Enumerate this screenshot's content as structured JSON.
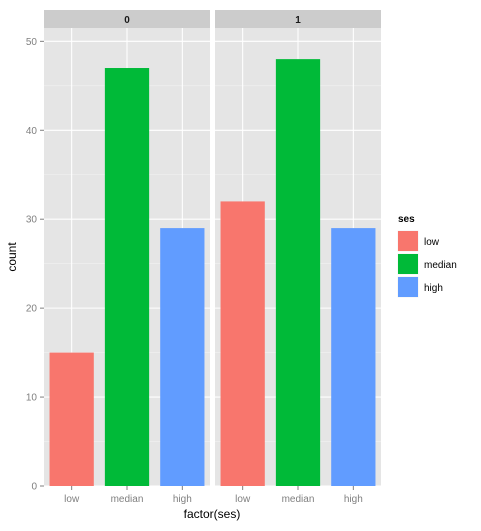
{
  "chart_data": {
    "type": "bar",
    "facets": [
      {
        "label": "0",
        "categories": [
          "low",
          "median",
          "high"
        ],
        "values": [
          15,
          47,
          29
        ]
      },
      {
        "label": "1",
        "categories": [
          "low",
          "median",
          "high"
        ],
        "values": [
          32,
          48,
          29
        ]
      }
    ],
    "categories": [
      "low",
      "median",
      "high"
    ],
    "xlabel": "factor(ses)",
    "ylabel": "count",
    "ylim": [
      0,
      51.5
    ],
    "yticks": [
      0,
      10,
      20,
      30,
      40,
      50
    ],
    "legend": {
      "title": "ses",
      "position": "right",
      "entries": [
        {
          "label": "low",
          "color": "#F8766D"
        },
        {
          "label": "median",
          "color": "#00BA38"
        },
        {
          "label": "high",
          "color": "#619CFF"
        }
      ]
    },
    "grid": true
  },
  "colors": {
    "panel_bg": "#E5E5E5",
    "strip_bg": "#CCCCCC",
    "grid_major": "#FFFFFF",
    "grid_minor": "#F2F2F2"
  }
}
